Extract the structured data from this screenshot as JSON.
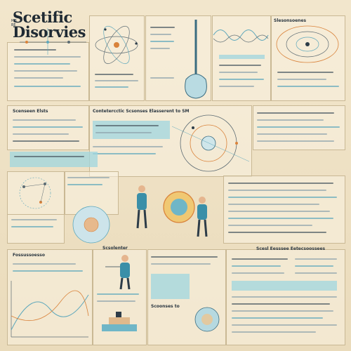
{
  "poster": {
    "title_line1": "Scetific",
    "title_line2": "Disorvies",
    "corner_tag": "MB\nBE",
    "headers": {
      "top_left_small": "=",
      "mid_left": "Scenseen Elsts",
      "mid_center": "Contetercctic Scsonses Elasserent to SM",
      "bottom_left": "Fossussoesso",
      "bottom_center": "Scsolenter",
      "bottom_right": "Scesl Eesssee Eetecsoossees",
      "tab_small": "Slesonsoenes",
      "sample_box": "Scoonses to"
    }
  },
  "colors": {
    "background": "#efe2c6",
    "accent_blue": "#5fa8bc",
    "highlight_cyan": "#9fd6df",
    "accent_orange": "#d9823a",
    "ink": "#1f2a33"
  }
}
